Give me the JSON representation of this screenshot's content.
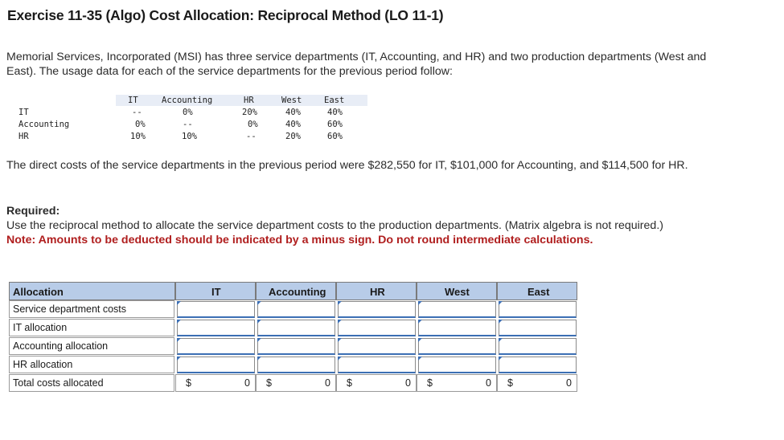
{
  "title": "Exercise 11-35 (Algo) Cost Allocation: Reciprocal Method (LO 11-1)",
  "intro": "Memorial Services, Incorporated (MSI) has three service departments (IT, Accounting, and HR) and two production departments (West and East). The usage data for each of the service departments for the previous period follow:",
  "usage_table": {
    "headers": [
      "IT",
      "Accounting",
      "HR",
      "West",
      "East"
    ],
    "rows": [
      {
        "label": "IT",
        "values": [
          "--",
          "0%",
          "20%",
          "40%",
          "40%"
        ]
      },
      {
        "label": "Accounting",
        "values": [
          "0%",
          "--",
          "0%",
          "40%",
          "60%"
        ]
      },
      {
        "label": "HR",
        "values": [
          "10%",
          "10%",
          "--",
          "20%",
          "60%"
        ]
      }
    ]
  },
  "direct_costs": "The direct costs of the service departments in the previous period were $282,550 for IT, $101,000 for Accounting, and $114,500 for HR.",
  "required": {
    "heading": "Required:",
    "text": "Use the reciprocal method to allocate the service department costs to the production departments. (Matrix algebra is not required.)",
    "note": "Note: Amounts to be deducted should be indicated by a minus sign. Do not round intermediate calculations."
  },
  "allocation_table": {
    "corner": "Allocation",
    "columns": [
      "IT",
      "Accounting",
      "HR",
      "West",
      "East"
    ],
    "rows": [
      "Service department costs",
      "IT allocation",
      "Accounting allocation",
      "HR allocation"
    ],
    "total_label": "Total costs allocated",
    "currency": "$",
    "totals": [
      "0",
      "0",
      "0",
      "0",
      "0"
    ]
  }
}
